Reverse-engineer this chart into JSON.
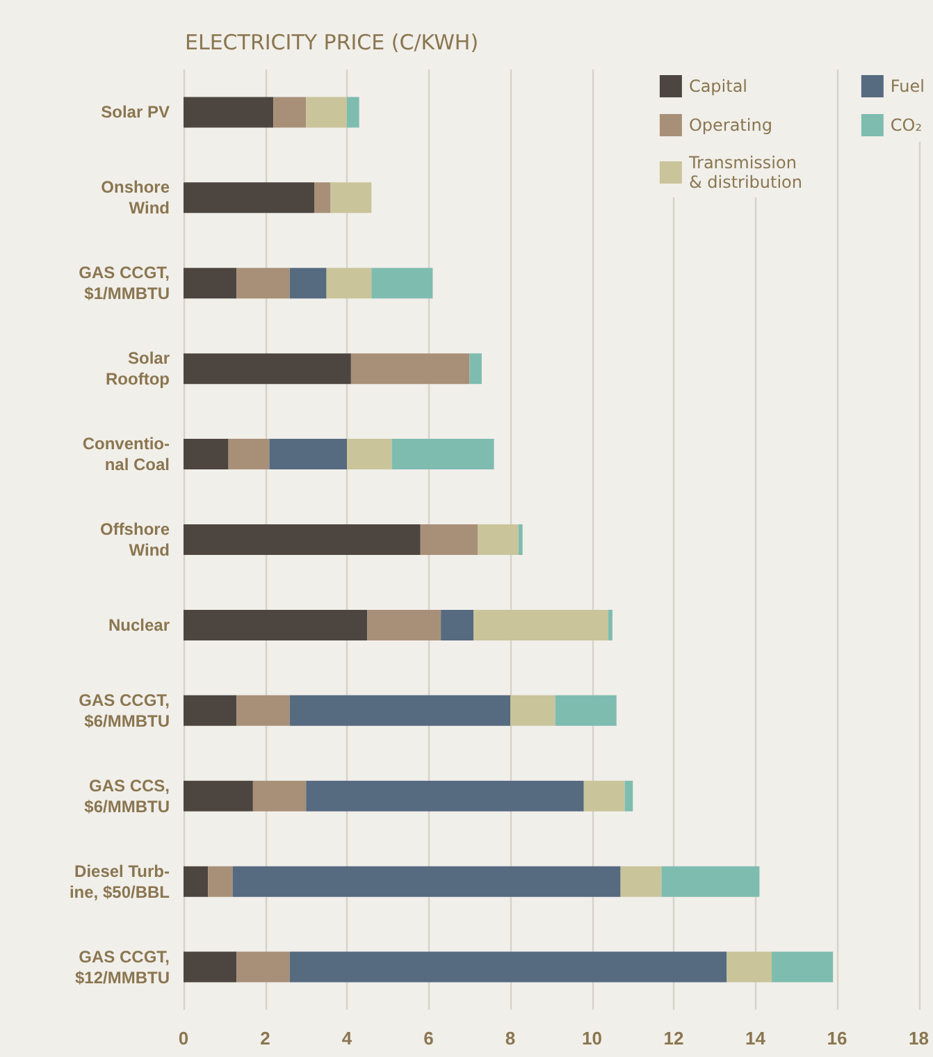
{
  "chart_data": {
    "type": "bar",
    "orientation": "horizontal",
    "stacked": true,
    "title": "ELECTRICITY PRICE (C/KWH)",
    "categories": [
      "Solar PV",
      "Onshore\nWind",
      "GAS CCGT,\n$1/MMBTU",
      "Solar\nRooftop",
      "Conventio-\nnal Coal",
      "Offshore\nWind",
      "Nuclear",
      "GAS CCGT,\n$6/MMBTU",
      "GAS CCS,\n$6/MMBTU",
      "Diesel Turb-\nine, $50/BBL",
      "GAS CCGT,\n$12/MMBTU"
    ],
    "series": [
      {
        "name": "Capital",
        "color": "#4d4640",
        "values": [
          2.2,
          3.2,
          1.3,
          4.1,
          1.1,
          5.8,
          4.5,
          1.3,
          1.7,
          0.6,
          1.3
        ]
      },
      {
        "name": "Operating",
        "color": "#a89078",
        "values": [
          0.8,
          0.4,
          1.3,
          2.9,
          1.0,
          1.4,
          1.8,
          1.3,
          1.3,
          0.6,
          1.3
        ]
      },
      {
        "name": "Fuel",
        "color": "#566a80",
        "values": [
          0,
          0,
          0.9,
          0,
          1.9,
          0,
          0.8,
          5.4,
          6.8,
          9.5,
          10.7
        ]
      },
      {
        "name": "Transmission\n& distribution",
        "color": "#c9c49a",
        "values": [
          1.0,
          1.0,
          1.1,
          0,
          1.1,
          1.0,
          3.3,
          1.1,
          1.0,
          1.0,
          1.1
        ]
      },
      {
        "name": "CO₂",
        "color": "#7fbcb0",
        "values": [
          0.3,
          0,
          1.5,
          0.3,
          2.5,
          0.1,
          0.1,
          1.5,
          0.2,
          2.4,
          1.5
        ]
      }
    ],
    "xlim": [
      0,
      18
    ],
    "xticks": [
      0,
      2,
      4,
      6,
      8,
      10,
      12,
      14,
      16,
      18
    ],
    "grid": "x",
    "legend": "top right"
  }
}
